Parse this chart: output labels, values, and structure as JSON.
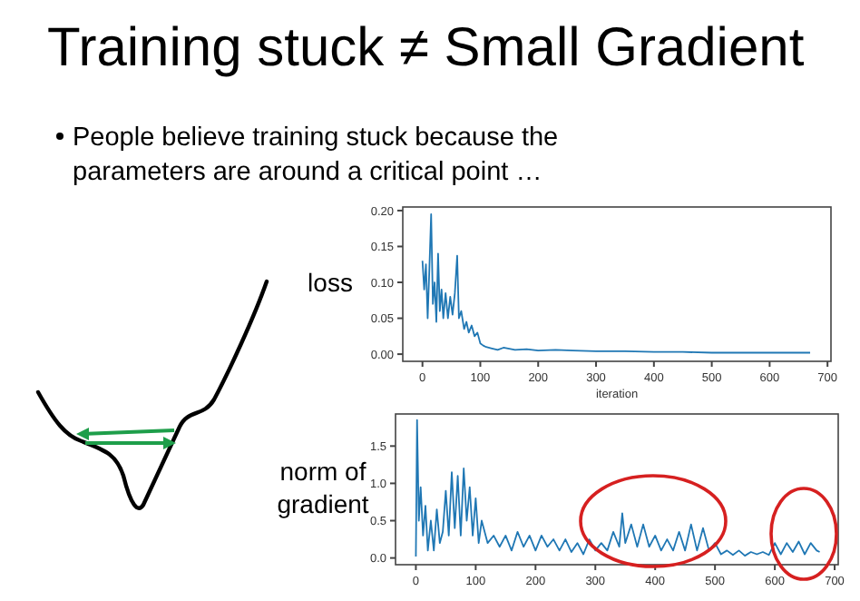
{
  "chart_data": [
    {
      "type": "line",
      "title": "Training stuck ≠ Small Gradient",
      "subtitle": "People believe training stuck because the parameters are around a critical point …",
      "ylabel": "loss",
      "xlabel": "iteration",
      "xlim": [
        -34,
        706
      ],
      "ylim": [
        -0.01,
        0.205
      ],
      "xticks": [
        0,
        100,
        200,
        300,
        400,
        500,
        600,
        700
      ],
      "yticks": [
        {
          "value": 0,
          "label": "0.00"
        },
        {
          "value": 0.05,
          "label": "0.05"
        },
        {
          "value": 0.1,
          "label": "0.10"
        },
        {
          "value": 0.15,
          "label": "0.15"
        },
        {
          "value": 0.2,
          "label": "0.20"
        }
      ],
      "grid": false,
      "series": [
        {
          "color": "#1f77b4",
          "x": [
            0,
            3,
            6,
            9,
            12,
            15,
            18,
            21,
            24,
            27,
            30,
            33,
            36,
            40,
            44,
            48,
            52,
            56,
            60,
            63,
            67,
            72,
            76,
            80,
            85,
            90,
            95,
            100,
            105,
            110,
            120,
            130,
            140,
            160,
            180,
            200,
            230,
            260,
            300,
            350,
            400,
            450,
            500,
            550,
            600,
            650,
            670
          ],
          "values": [
            0.13,
            0.09,
            0.125,
            0.05,
            0.12,
            0.195,
            0.07,
            0.1,
            0.045,
            0.14,
            0.06,
            0.09,
            0.05,
            0.085,
            0.05,
            0.08,
            0.055,
            0.085,
            0.137,
            0.05,
            0.06,
            0.035,
            0.045,
            0.03,
            0.04,
            0.025,
            0.03,
            0.015,
            0.012,
            0.01,
            0.008,
            0.006,
            0.009,
            0.006,
            0.007,
            0.005,
            0.006,
            0.005,
            0.004,
            0.004,
            0.003,
            0.003,
            0.002,
            0.002,
            0.002,
            0.002,
            0.002
          ]
        }
      ]
    },
    {
      "type": "line",
      "ylabel": "norm of gradient",
      "xlim": [
        -34,
        706
      ],
      "ylim": [
        -0.09,
        1.93
      ],
      "xticks": [
        0,
        100,
        200,
        300,
        400,
        500,
        600,
        700
      ],
      "yticks": [
        {
          "value": 0,
          "label": "0.0"
        },
        {
          "value": 0.5,
          "label": "0.5"
        },
        {
          "value": 1,
          "label": "1.0"
        },
        {
          "value": 1.5,
          "label": "1.5"
        }
      ],
      "grid": false,
      "series": [
        {
          "color": "#1f77b4",
          "x": [
            0,
            2,
            5,
            8,
            12,
            16,
            20,
            25,
            30,
            35,
            40,
            45,
            50,
            55,
            60,
            65,
            70,
            75,
            80,
            85,
            90,
            95,
            100,
            105,
            110,
            120,
            130,
            140,
            150,
            160,
            170,
            180,
            190,
            200,
            210,
            220,
            230,
            240,
            250,
            260,
            270,
            280,
            290,
            300,
            310,
            320,
            330,
            340,
            345,
            350,
            360,
            370,
            380,
            390,
            400,
            410,
            420,
            430,
            440,
            450,
            460,
            470,
            480,
            490,
            500,
            510,
            520,
            530,
            540,
            550,
            560,
            570,
            580,
            590,
            600,
            610,
            620,
            630,
            640,
            650,
            660,
            670,
            675
          ],
          "values": [
            0.02,
            1.85,
            0.5,
            0.95,
            0.3,
            0.7,
            0.1,
            0.5,
            0.1,
            0.65,
            0.2,
            0.35,
            0.9,
            0.3,
            1.15,
            0.4,
            1.1,
            0.3,
            1.2,
            0.5,
            0.95,
            0.3,
            0.8,
            0.2,
            0.5,
            0.2,
            0.3,
            0.15,
            0.3,
            0.1,
            0.35,
            0.15,
            0.3,
            0.1,
            0.3,
            0.15,
            0.25,
            0.1,
            0.25,
            0.08,
            0.2,
            0.05,
            0.25,
            0.1,
            0.2,
            0.1,
            0.35,
            0.15,
            0.6,
            0.2,
            0.45,
            0.15,
            0.45,
            0.15,
            0.3,
            0.1,
            0.25,
            0.1,
            0.35,
            0.1,
            0.45,
            0.1,
            0.4,
            0.1,
            0.2,
            0.05,
            0.1,
            0.04,
            0.1,
            0.03,
            0.08,
            0.05,
            0.08,
            0.04,
            0.2,
            0.05,
            0.2,
            0.08,
            0.22,
            0.05,
            0.2,
            0.1,
            0.08
          ]
        }
      ]
    }
  ]
}
